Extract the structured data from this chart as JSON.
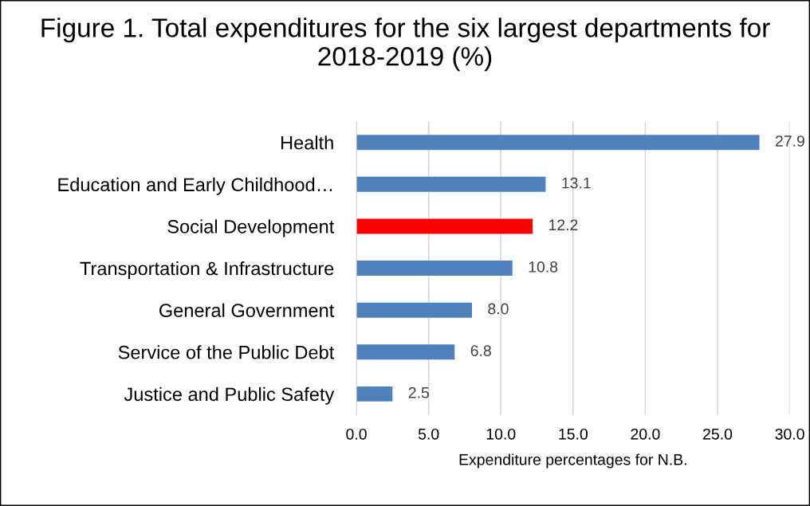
{
  "chart_data": {
    "type": "bar",
    "orientation": "horizontal",
    "title": "Figure 1. Total expenditures for the six largest departments for 2018-2019 (%)",
    "xlabel": "Expenditure percentages for N.B.",
    "categories": [
      "Health",
      "Education and Early Childhood…",
      "Social Development",
      "Transportation & Infrastructure",
      "General Government",
      "Service of the Public Debt",
      "Justice and Public Safety"
    ],
    "values": [
      27.9,
      13.1,
      12.2,
      10.8,
      8.0,
      6.8,
      2.5
    ],
    "value_labels": [
      "27.9",
      "13.1",
      "12.2",
      "10.8",
      "8.0",
      "6.8",
      "2.5"
    ],
    "colors": [
      "#4f81bd",
      "#4f81bd",
      "#ff0000",
      "#4f81bd",
      "#4f81bd",
      "#4f81bd",
      "#4f81bd"
    ],
    "xlim": [
      0,
      30
    ],
    "xticks": [
      {
        "value": 0,
        "label": "0.0"
      },
      {
        "value": 5,
        "label": "5.0"
      },
      {
        "value": 10,
        "label": "10.0"
      },
      {
        "value": 15,
        "label": "15.0"
      },
      {
        "value": 20,
        "label": "20.0"
      },
      {
        "value": 25,
        "label": "25.0"
      },
      {
        "value": 30,
        "label": "30.0"
      }
    ],
    "grid": "x",
    "legend": false
  }
}
